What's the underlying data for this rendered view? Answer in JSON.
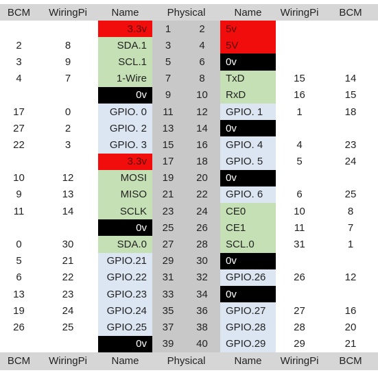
{
  "headers": [
    "BCM",
    "WiringPi",
    "Name",
    "Physical",
    "Name",
    "WiringPi",
    "BCM"
  ],
  "rows": [
    {
      "lb": "",
      "lw": "",
      "ln": "3.3v",
      "lc": "red",
      "lp": "1",
      "rp": "2",
      "rn": "5v",
      "rc": "red",
      "rw": "",
      "rbcm": ""
    },
    {
      "lb": "2",
      "lw": "8",
      "ln": "SDA.1",
      "lc": "green",
      "lp": "3",
      "rp": "4",
      "rn": "5V",
      "rc": "red",
      "rw": "",
      "rbcm": ""
    },
    {
      "lb": "3",
      "lw": "9",
      "ln": "SCL.1",
      "lc": "green",
      "lp": "5",
      "rp": "6",
      "rn": "0v",
      "rc": "black",
      "rw": "",
      "rbcm": ""
    },
    {
      "lb": "4",
      "lw": "7",
      "ln": "1-Wire",
      "lc": "green",
      "lp": "7",
      "rp": "8",
      "rn": "TxD",
      "rc": "green",
      "rw": "15",
      "rbcm": "14"
    },
    {
      "lb": "",
      "lw": "",
      "ln": "0v",
      "lc": "black",
      "lp": "9",
      "rp": "10",
      "rn": "RxD",
      "rc": "green",
      "rw": "16",
      "rbcm": "15"
    },
    {
      "lb": "17",
      "lw": "0",
      "ln": "GPIO. 0",
      "lc": "blue",
      "lp": "11",
      "rp": "12",
      "rn": "GPIO. 1",
      "rc": "blue",
      "rw": "1",
      "rbcm": "18"
    },
    {
      "lb": "27",
      "lw": "2",
      "ln": "GPIO. 2",
      "lc": "blue",
      "lp": "13",
      "rp": "14",
      "rn": "0v",
      "rc": "black",
      "rw": "",
      "rbcm": ""
    },
    {
      "lb": "22",
      "lw": "3",
      "ln": "GPIO. 3",
      "lc": "blue",
      "lp": "15",
      "rp": "16",
      "rn": "GPIO. 4",
      "rc": "blue",
      "rw": "4",
      "rbcm": "23"
    },
    {
      "lb": "",
      "lw": "",
      "ln": "3.3v",
      "lc": "red",
      "lp": "17",
      "rp": "18",
      "rn": "GPIO. 5",
      "rc": "blue",
      "rw": "5",
      "rbcm": "24"
    },
    {
      "lb": "10",
      "lw": "12",
      "ln": "MOSI",
      "lc": "green",
      "lp": "19",
      "rp": "20",
      "rn": "0v",
      "rc": "black",
      "rw": "",
      "rbcm": ""
    },
    {
      "lb": "9",
      "lw": "13",
      "ln": "MISO",
      "lc": "green",
      "lp": "21",
      "rp": "22",
      "rn": "GPIO. 6",
      "rc": "blue",
      "rw": "6",
      "rbcm": "25"
    },
    {
      "lb": "11",
      "lw": "14",
      "ln": "SCLK",
      "lc": "green",
      "lp": "23",
      "rp": "24",
      "rn": "CE0",
      "rc": "green",
      "rw": "10",
      "rbcm": "8"
    },
    {
      "lb": "",
      "lw": "",
      "ln": "0v",
      "lc": "black",
      "lp": "25",
      "rp": "26",
      "rn": "CE1",
      "rc": "green",
      "rw": "11",
      "rbcm": "7"
    },
    {
      "lb": "0",
      "lw": "30",
      "ln": "SDA.0",
      "lc": "green",
      "lp": "27",
      "rp": "28",
      "rn": "SCL.0",
      "rc": "green",
      "rw": "31",
      "rbcm": "1"
    },
    {
      "lb": "5",
      "lw": "21",
      "ln": "GPIO.21",
      "lc": "blue",
      "lp": "29",
      "rp": "30",
      "rn": "0v",
      "rc": "black",
      "rw": "",
      "rbcm": ""
    },
    {
      "lb": "6",
      "lw": "22",
      "ln": "GPIO.22",
      "lc": "blue",
      "lp": "31",
      "rp": "32",
      "rn": "GPIO.26",
      "rc": "blue",
      "rw": "26",
      "rbcm": "12"
    },
    {
      "lb": "13",
      "lw": "23",
      "ln": "GPIO.23",
      "lc": "blue",
      "lp": "33",
      "rp": "34",
      "rn": "0v",
      "rc": "black",
      "rw": "",
      "rbcm": ""
    },
    {
      "lb": "19",
      "lw": "24",
      "ln": "GPIO.24",
      "lc": "blue",
      "lp": "35",
      "rp": "36",
      "rn": "GPIO.27",
      "rc": "blue",
      "rw": "27",
      "rbcm": "16"
    },
    {
      "lb": "26",
      "lw": "25",
      "ln": "GPIO.25",
      "lc": "blue",
      "lp": "37",
      "rp": "38",
      "rn": "GPIO.28",
      "rc": "blue",
      "rw": "28",
      "rbcm": "20"
    },
    {
      "lb": "",
      "lw": "",
      "ln": "0v",
      "lc": "black",
      "lp": "39",
      "rp": "40",
      "rn": "GPIO.29",
      "rc": "blue",
      "rw": "29",
      "rbcm": "21"
    }
  ],
  "colors": {
    "red": "#f20d0d",
    "green": "#c5e0b4",
    "blue": "#dce6f2",
    "black": "#000000",
    "header": "#d6d6d6",
    "physical": "#c8c8c8"
  }
}
